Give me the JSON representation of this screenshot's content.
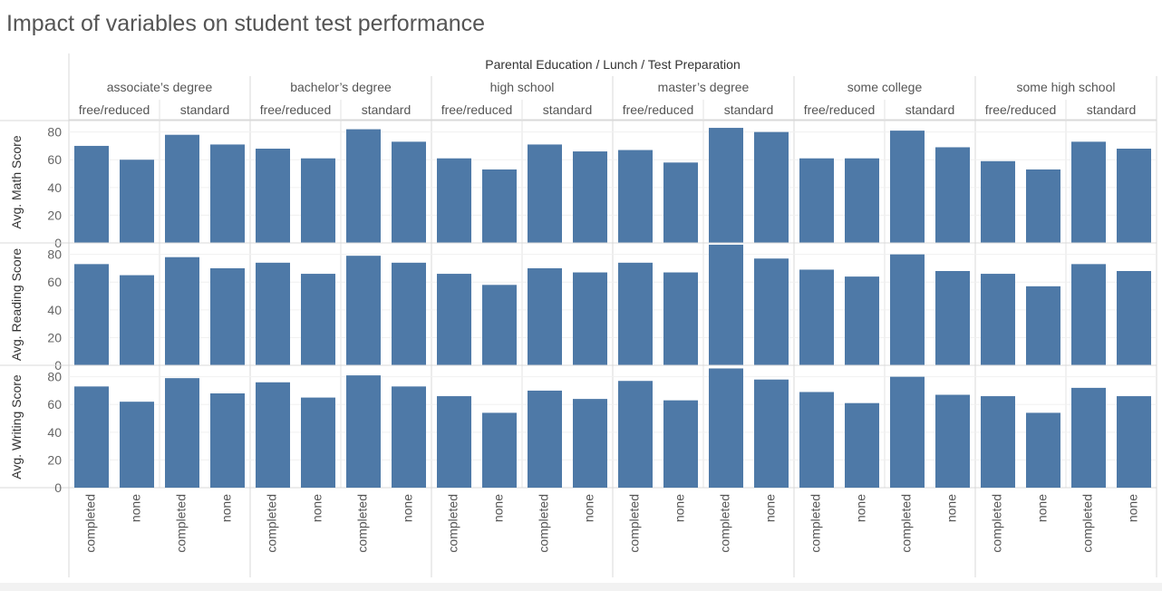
{
  "title": "Impact of variables on student test performance",
  "chart_data": {
    "type": "bar",
    "title": "Impact of variables on student test performance",
    "header_title": "Parental Education / Lunch / Test Preparation",
    "parental_education": [
      "associate’s degree",
      "bachelor’s degree",
      "high school",
      "master’s degree",
      "some college",
      "some high school"
    ],
    "lunch": [
      "free/reduced",
      "standard"
    ],
    "test_preparation": [
      "completed",
      "none"
    ],
    "ylim": [
      0,
      85
    ],
    "y_ticks": [
      0,
      20,
      40,
      60,
      80
    ],
    "grid": true,
    "bar_color": "#4e79a7",
    "series": [
      {
        "name": "Avg. Math Score",
        "values": [
          70,
          60,
          78,
          71,
          68,
          61,
          82,
          73,
          61,
          53,
          71,
          66,
          67,
          58,
          83,
          80,
          61,
          61,
          81,
          69,
          59,
          53,
          73,
          68
        ]
      },
      {
        "name": "Avg. Reading Score",
        "values": [
          73,
          65,
          78,
          70,
          74,
          66,
          79,
          74,
          66,
          58,
          70,
          67,
          74,
          67,
          87,
          77,
          69,
          64,
          80,
          68,
          66,
          57,
          73,
          68
        ]
      },
      {
        "name": "Avg. Writing Score",
        "values": [
          73,
          62,
          79,
          68,
          76,
          65,
          81,
          73,
          66,
          54,
          70,
          64,
          77,
          63,
          86,
          78,
          69,
          61,
          80,
          67,
          66,
          54,
          72,
          66
        ]
      }
    ]
  }
}
